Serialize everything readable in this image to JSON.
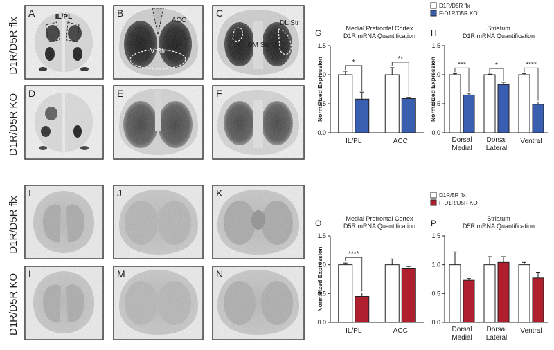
{
  "section_top": {
    "row_labels": [
      "D1R/D5R flx",
      "D1R/D5R KO"
    ],
    "panel_letters": [
      "A",
      "B",
      "C",
      "D",
      "E",
      "F"
    ],
    "region_labels": {
      "il_pl": "IL/PL",
      "acc": "ACC",
      "v_str": "V Str",
      "dm_str": "DM Str",
      "dl_str": "DL Str"
    }
  },
  "section_bottom": {
    "row_labels": [
      "D1R/D5R flx",
      "D1R/D5R KO"
    ],
    "panel_letters": [
      "I",
      "J",
      "K",
      "L",
      "M",
      "N"
    ]
  },
  "legends": {
    "top": [
      "D1R/D5R flx",
      "F-D1R/D5R KO"
    ],
    "bottom": [
      "D1R/5R flx",
      "F-D1R/D5R KO"
    ]
  },
  "colors": {
    "control": "#ffffff",
    "d1r_ko": "#3a5eb0",
    "d5r_ko": "#b01f2e",
    "axis": "#222222"
  },
  "chart_data": [
    {
      "letter": "G",
      "type": "bar",
      "title": "Medial Prefrontal Cortex",
      "subtitle": "D1R mRNA Quantification",
      "ylabel": "Normalized Expression",
      "ylim": [
        0,
        1.5
      ],
      "yticks": [
        "0.0",
        "0.5",
        "1.0",
        "1.5"
      ],
      "categories": [
        "IL/PL",
        "ACC"
      ],
      "series": [
        {
          "name": "D1R/D5R flx",
          "values": [
            1.0,
            1.0
          ],
          "errors": [
            0.06,
            0.12
          ]
        },
        {
          "name": "F-D1R/D5R KO",
          "values": [
            0.58,
            0.59
          ],
          "errors": [
            0.12,
            0.02
          ]
        }
      ],
      "significance": [
        "*",
        "**"
      ]
    },
    {
      "letter": "H",
      "type": "bar",
      "title": "Striatum",
      "subtitle": "D1R mRNA Quantification",
      "ylabel": "Normalized Expression",
      "ylim": [
        0,
        1.5
      ],
      "yticks": [
        "0.0",
        "0.5",
        "1.0",
        "1.5"
      ],
      "categories": [
        "Dorsal Medial",
        "Dorsal Lateral",
        "Ventral"
      ],
      "series": [
        {
          "name": "D1R/D5R flx",
          "values": [
            1.0,
            1.0,
            1.0
          ],
          "errors": [
            0.02,
            0.01,
            0.02
          ]
        },
        {
          "name": "F-D1R/D5R KO",
          "values": [
            0.65,
            0.83,
            0.49
          ],
          "errors": [
            0.03,
            0.04,
            0.04
          ]
        }
      ],
      "significance": [
        "***",
        "*",
        "****"
      ]
    },
    {
      "letter": "O",
      "type": "bar",
      "title": "Medial Prefrontal Cortex",
      "subtitle": "D5R mRNA Quantification",
      "ylabel": "Normalized Expression",
      "ylim": [
        0,
        1.5
      ],
      "yticks": [
        "0.0",
        "0.5",
        "1.0",
        "1.5"
      ],
      "categories": [
        "IL/PL",
        "ACC"
      ],
      "series": [
        {
          "name": "D1R/5R flx",
          "values": [
            1.0,
            1.0
          ],
          "errors": [
            0.03,
            0.1
          ]
        },
        {
          "name": "F-D1R/D5R KO",
          "values": [
            0.45,
            0.93
          ],
          "errors": [
            0.06,
            0.04
          ]
        }
      ],
      "significance": [
        "****",
        ""
      ]
    },
    {
      "letter": "P",
      "type": "bar",
      "title": "Striatum",
      "subtitle": "D5R mRNA Quantification",
      "ylabel": "",
      "ylim": [
        0,
        1.5
      ],
      "yticks": [
        "0.0",
        "0.5",
        "1.0",
        "1.5"
      ],
      "categories": [
        "Dorsal Medial",
        "Dorsal Lateral",
        "Ventral"
      ],
      "series": [
        {
          "name": "D1R/5R flx",
          "values": [
            1.0,
            1.0,
            1.0
          ],
          "errors": [
            0.22,
            0.14,
            0.04
          ]
        },
        {
          "name": "F-D1R/D5R KO",
          "values": [
            0.73,
            1.04,
            0.77
          ],
          "errors": [
            0.03,
            0.1,
            0.1
          ]
        }
      ],
      "significance": [
        "",
        "",
        ""
      ]
    }
  ]
}
